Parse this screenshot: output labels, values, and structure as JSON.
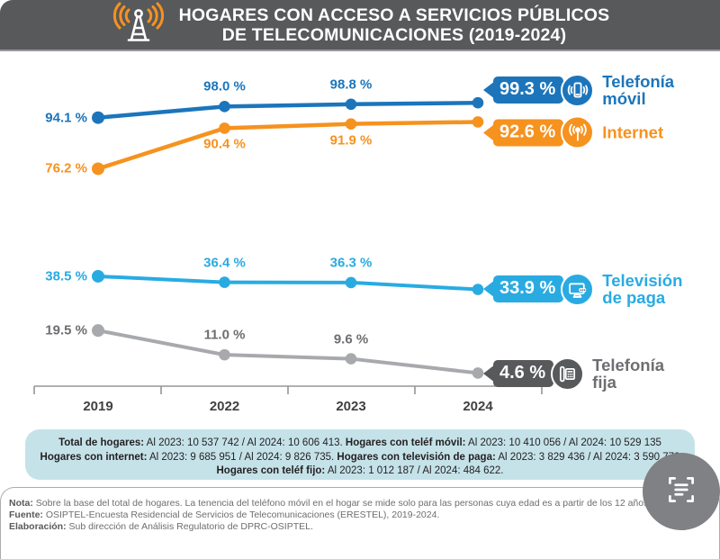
{
  "header": {
    "title_line1": "HOGARES CON ACCESO A SERVICIOS PÚBLICOS",
    "title_line2": "DE TELECOMUNICACIONES (2019-2024)",
    "icon": "broadcast-antenna-icon",
    "bg_color": "#58595B",
    "accent_orange": "#F6921E"
  },
  "chart_data": {
    "type": "line",
    "title": "Hogares con acceso a servicios públicos de telecomunicaciones (2019-2024)",
    "x_categories": [
      "2019",
      "2022",
      "2023",
      "2024"
    ],
    "ylim": [
      0,
      100
    ],
    "grid": false,
    "unit": "%",
    "series": [
      {
        "name": "Telefonía móvil",
        "color": "#1C75BB",
        "values": [
          94.1,
          98.0,
          98.8,
          99.3
        ],
        "labels": [
          "94.1 %",
          "98.0 %",
          "98.8 %",
          "99.3 %"
        ],
        "mid_label_pos": "above"
      },
      {
        "name": "Internet",
        "color": "#F6921E",
        "values": [
          76.2,
          90.4,
          91.9,
          92.6
        ],
        "labels": [
          "76.2 %",
          "90.4 %",
          "91.9 %",
          "92.6 %"
        ],
        "mid_label_pos": "below"
      },
      {
        "name": "Televisión de paga",
        "color": "#29ABE2",
        "values": [
          38.5,
          36.4,
          36.3,
          33.9
        ],
        "labels": [
          "38.5 %",
          "36.4 %",
          "36.3 %",
          "33.9 %"
        ],
        "mid_label_pos": "above"
      },
      {
        "name": "Telefonía fija",
        "color": "#A7A9AC",
        "values": [
          19.5,
          11.0,
          9.6,
          4.6
        ],
        "labels": [
          "19.5 %",
          "11.0 %",
          "9.6 %",
          "4.6 %"
        ],
        "mid_label_pos": "above"
      }
    ]
  },
  "legend": [
    {
      "value_label": "99.3 %",
      "name_lines": [
        "Telefonía",
        "móvil"
      ],
      "icon": "mobile-phone-icon",
      "badge_color": "#1C75BB",
      "text_color": "#1C75BB"
    },
    {
      "value_label": "92.6 %",
      "name_lines": [
        "Internet"
      ],
      "icon": "antenna-signal-icon",
      "badge_color": "#F6921E",
      "text_color": "#F6921E"
    },
    {
      "value_label": "33.9 %",
      "name_lines": [
        "Televisión",
        "de paga"
      ],
      "icon": "pay-tv-icon",
      "badge_color": "#29ABE2",
      "text_color": "#29ABE2"
    },
    {
      "value_label": "4.6 %",
      "name_lines": [
        "Telefonía",
        "fija"
      ],
      "icon": "landline-phone-icon",
      "badge_color": "#58595B",
      "text_color": "#6D6E71"
    }
  ],
  "info_box": {
    "bg_color": "#C5E2E9",
    "lines": [
      [
        {
          "b": 1,
          "t": "Total de hogares:"
        },
        {
          "t": " Al 2023: 10 537 742 / Al 2024: 10 606 413. "
        },
        {
          "b": 1,
          "t": "Hogares con teléf  móvil:"
        },
        {
          "t": " Al 2023: 10 410 056 / Al 2024: 10 529 135"
        }
      ],
      [
        {
          "b": 1,
          "t": "Hogares con internet:"
        },
        {
          "t": " Al 2023: 9 685 951 / Al 2024: 9 826 735. "
        },
        {
          "b": 1,
          "t": "Hogares con televisión de paga:"
        },
        {
          "t": " Al 2023: 3 829 436 / Al 2024: 3 590 772"
        }
      ],
      [
        {
          "b": 1,
          "t": "Hogares con teléf  fijo:"
        },
        {
          "t": " Al 2023: 1 012 187 / Al 2024: 484 622."
        }
      ]
    ]
  },
  "notes": [
    {
      "label": "Nota:",
      "text": " Sobre la base del total de hogares. La tenencia del teléfono móvil en el hogar se mide solo para las personas cuya edad es a partir de los 12 años."
    },
    {
      "label": "Fuente:",
      "text": " OSIPTEL-Encuesta Residencial de Servicios de Telecomunicaciones (ERESTEL), 2019-2024."
    },
    {
      "label": "Elaboración:",
      "text": " Sub dirección de Análisis Regulatorio de DPRC-OSIPTEL."
    }
  ],
  "scan_button": {
    "icon": "document-scan-icon",
    "bg_color": "#808184"
  }
}
